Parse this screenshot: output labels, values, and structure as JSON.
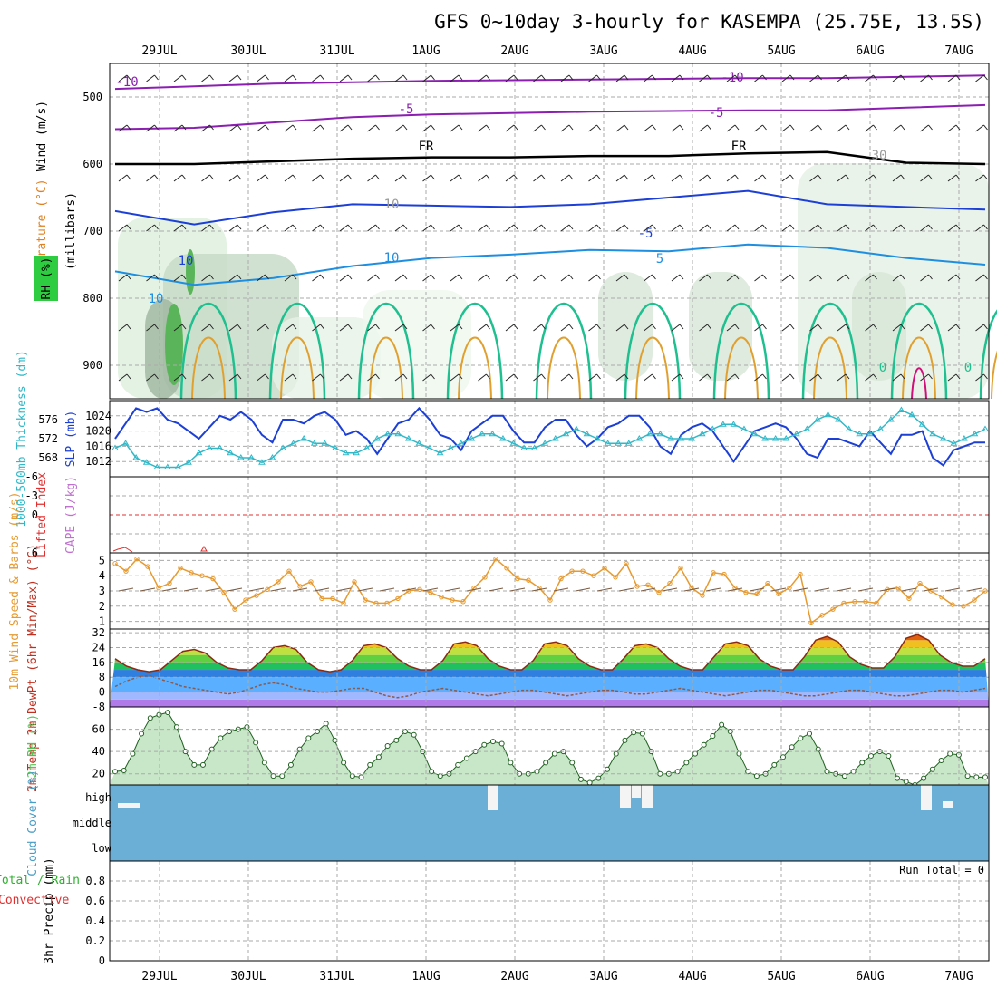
{
  "title": "GFS 0~10day 3-hourly for KASEMPA (25.75E, 13.5S)",
  "date_labels": [
    "29JUL",
    "30JUL",
    "31JUL",
    "1AUG",
    "2AUG",
    "3AUG",
    "4AUG",
    "5AUG",
    "6AUG",
    "7AUG"
  ],
  "colors": {
    "purple": "#8a1fb0",
    "black": "#000000",
    "blue": "#1c3fd6",
    "lightblue": "#1e8ee0",
    "teal": "#1fbf8f",
    "orange": "#e0a030",
    "magenta": "#d0107a",
    "rhgreen": "#2ecc40",
    "cyan": "#30b8c8",
    "red": "#e03030",
    "windorange": "#e69a30",
    "cloud": "#6baed6",
    "rh2m": "#55c455"
  },
  "chart_data": [
    {
      "type": "heatmap",
      "name": "upper-air cross-section",
      "ylabel_wind": "Wind (m/s)",
      "ylabel_temp": "Temperature (°C)",
      "ylabel_rh": "RH (%)",
      "ylabel_axis": "(millibars)",
      "ylim": [
        450,
        950
      ],
      "yticks": [
        500,
        600,
        700,
        800,
        900
      ],
      "contour_labels": [
        "-10",
        "-5",
        "-10",
        "-5",
        "FR",
        "FR",
        "30",
        "10",
        "-5",
        "10",
        "10",
        "5",
        "10",
        "0",
        "0"
      ],
      "temperature_isotherms_levels_mb": {
        "minus10": [
          488,
          484,
          480,
          478,
          476,
          475,
          474,
          473,
          472,
          472,
          470,
          468
        ],
        "minus5": [
          548,
          546,
          538,
          530,
          526,
          524,
          522,
          521,
          520,
          520,
          516,
          512
        ],
        "freezing": [
          600,
          600,
          596,
          592,
          590,
          590,
          588,
          588,
          584,
          582,
          598,
          600
        ],
        "plus5": [
          670,
          690,
          672,
          660,
          662,
          664,
          660,
          650,
          640,
          660,
          664,
          668
        ],
        "plus10": [
          760,
          780,
          770,
          752,
          740,
          735,
          728,
          730,
          720,
          725,
          740,
          750
        ]
      }
    },
    {
      "type": "line",
      "name": "thickness and slp",
      "ylabel_left": "1000-500mb Thickness (dm)",
      "ylabel_right": "SLP (mb)",
      "yticks_left": [
        568,
        572,
        576
      ],
      "yticks_right": [
        1012,
        1016,
        1020,
        1024
      ],
      "series": [
        {
          "name": "SLP (mb)",
          "values": [
            1018,
            1022,
            1026,
            1025,
            1026,
            1023,
            1022,
            1020,
            1018,
            1021,
            1024,
            1023,
            1025,
            1023,
            1019,
            1017,
            1023,
            1023,
            1022,
            1024,
            1025,
            1023,
            1019,
            1020,
            1018,
            1014,
            1018,
            1022,
            1023,
            1026,
            1023,
            1019,
            1018,
            1015,
            1020,
            1022,
            1024,
            1024,
            1020,
            1017,
            1017,
            1021,
            1023,
            1023,
            1019,
            1016,
            1018,
            1021,
            1022,
            1024,
            1024,
            1021,
            1016,
            1014,
            1019,
            1021,
            1022,
            1020,
            1016,
            1012,
            1016,
            1020,
            1021,
            1022,
            1021,
            1018,
            1014,
            1013,
            1018,
            1018,
            1017,
            1016,
            1020,
            1017,
            1014,
            1019,
            1019,
            1020,
            1013,
            1011,
            1015,
            1016,
            1017,
            1017
          ]
        },
        {
          "name": "1000-500mb Thickness (dm)",
          "values": [
            570,
            571,
            568,
            567,
            566,
            566,
            566,
            567,
            569,
            570,
            570,
            569,
            568,
            568,
            567,
            568,
            570,
            571,
            572,
            571,
            571,
            570,
            569,
            569,
            570,
            572,
            573,
            573,
            572,
            571,
            570,
            569,
            570,
            571,
            572,
            573,
            573,
            572,
            571,
            570,
            570,
            571,
            572,
            573,
            574,
            573,
            572,
            571,
            571,
            571,
            572,
            573,
            573,
            572,
            572,
            572,
            573,
            574,
            575,
            575,
            574,
            573,
            572,
            572,
            572,
            573,
            574,
            576,
            577,
            576,
            574,
            573,
            573,
            574,
            576,
            578,
            577,
            575,
            573,
            572,
            571,
            572,
            573,
            574
          ]
        }
      ]
    },
    {
      "type": "line",
      "name": "stability",
      "ylabel_left": "Lifted Index",
      "ylabel_right": "CAPE (J/kg)",
      "yticks": [
        6,
        0,
        -3,
        -6
      ],
      "ylim": [
        6,
        -6
      ],
      "series": [
        {
          "name": "Lifted Index",
          "values": [
            5.6,
            5.2,
            6,
            6,
            5.5
          ]
        }
      ]
    },
    {
      "type": "line",
      "name": "10m wind",
      "ylabel": "10m Wind Speed & Barbs (m/s)",
      "ylim": [
        1,
        5
      ],
      "yticks": [
        1,
        2,
        3,
        4,
        5
      ],
      "series": [
        {
          "name": "10m Wind Speed",
          "values": [
            4.8,
            4.3,
            5.1,
            4.6,
            3.2,
            3.5,
            4.5,
            4.2,
            4.0,
            3.8,
            2.9,
            1.8,
            2.4,
            2.7,
            3.1,
            3.6,
            4.3,
            3.3,
            3.6,
            2.5,
            2.5,
            2.2,
            3.6,
            2.4,
            2.2,
            2.2,
            2.5,
            3.0,
            3.1,
            2.9,
            2.6,
            2.4,
            2.3,
            3.2,
            3.9,
            5.1,
            4.5,
            3.8,
            3.7,
            3.2,
            2.4,
            3.8,
            4.3,
            4.3,
            4.0,
            4.5,
            3.9,
            4.8,
            3.3,
            3.4,
            2.9,
            3.5,
            4.5,
            3.2,
            2.7,
            4.2,
            4.1,
            3.2,
            2.9,
            2.8,
            3.5,
            2.8,
            3.2,
            4.1,
            0.9,
            1.4,
            1.8,
            2.2,
            2.3,
            2.3,
            2.2,
            3.1,
            3.2,
            2.5,
            3.5,
            3.0,
            2.6,
            2.1,
            2.0,
            2.4,
            3.0
          ]
        }
      ]
    },
    {
      "type": "area",
      "name": "2m temperature",
      "ylabel": "2m Temp 2m DewPt (6hr Min/Max) (°C)",
      "ylim": [
        -8,
        34
      ],
      "yticks": [
        -8,
        0,
        8,
        16,
        24,
        32
      ],
      "series": [
        {
          "name": "2m Temp",
          "values": [
            18,
            14,
            12,
            11,
            12,
            17,
            22,
            23,
            21,
            16,
            13,
            12,
            12,
            17,
            24,
            25,
            23,
            16,
            12,
            11,
            12,
            17,
            25,
            26,
            24,
            18,
            14,
            12,
            12,
            17,
            26,
            27,
            25,
            18,
            14,
            12,
            12,
            17,
            26,
            27,
            25,
            18,
            14,
            12,
            12,
            18,
            25,
            26,
            24,
            18,
            14,
            12,
            12,
            19,
            26,
            27,
            25,
            18,
            14,
            12,
            12,
            19,
            28,
            30,
            27,
            19,
            15,
            13,
            13,
            19,
            29,
            31,
            28,
            20,
            16,
            14,
            14,
            18
          ]
        },
        {
          "name": "2m DewPt",
          "values": [
            3,
            6,
            8,
            9,
            7,
            5,
            3,
            2,
            1,
            0,
            -1,
            0,
            2,
            4,
            5,
            4,
            2,
            1,
            0,
            0,
            1,
            2,
            2,
            0,
            -2,
            -3,
            -2,
            0,
            1,
            2,
            1,
            0,
            -1,
            -2,
            -1,
            0,
            1,
            1,
            0,
            -1,
            -2,
            -1,
            0,
            1,
            1,
            0,
            -1,
            -1,
            0,
            1,
            2,
            1,
            0,
            -1,
            -2,
            -1,
            0,
            1,
            1,
            0,
            -1,
            -2,
            -2,
            -1,
            0,
            1,
            1,
            0,
            -1,
            -2,
            -2,
            -1,
            0,
            1,
            1,
            0,
            1,
            2
          ]
        }
      ]
    },
    {
      "type": "area",
      "name": "2m relative humidity",
      "ylabel": "2m RH (%)",
      "ylim": [
        10,
        80
      ],
      "yticks": [
        20,
        40,
        60
      ],
      "series": [
        {
          "name": "2m RH",
          "values": [
            22,
            23,
            38,
            56,
            70,
            73,
            75,
            62,
            40,
            28,
            28,
            42,
            52,
            58,
            60,
            62,
            48,
            30,
            18,
            18,
            28,
            42,
            52,
            58,
            65,
            50,
            30,
            18,
            17,
            28,
            35,
            45,
            50,
            58,
            55,
            40,
            22,
            18,
            20,
            28,
            34,
            40,
            46,
            49,
            47,
            30,
            20,
            20,
            22,
            30,
            38,
            40,
            30,
            15,
            12,
            16,
            24,
            38,
            50,
            57,
            56,
            40,
            20,
            20,
            22,
            30,
            38,
            46,
            54,
            64,
            58,
            38,
            22,
            18,
            20,
            28,
            35,
            44,
            52,
            56,
            42,
            22,
            20,
            18,
            22,
            30,
            36,
            40,
            36,
            16,
            13,
            10,
            16,
            24,
            32,
            38,
            37,
            18,
            17,
            17
          ]
        }
      ]
    },
    {
      "type": "area",
      "name": "cloud cover",
      "ylabel": "Cloud Cover (%)",
      "tick_labels": [
        "high",
        "middle",
        "low"
      ]
    },
    {
      "type": "bar",
      "name": "3hr precipitation",
      "ylabel": "3hr Precip (mm)",
      "ylabel_legend_a": "Total / Rain",
      "ylabel_legend_b": "Convective",
      "ylim": [
        0,
        1.0
      ],
      "yticks": [
        0,
        0.2,
        0.4,
        0.6,
        0.8
      ],
      "run_total": "Run Total = 0",
      "values": []
    }
  ]
}
